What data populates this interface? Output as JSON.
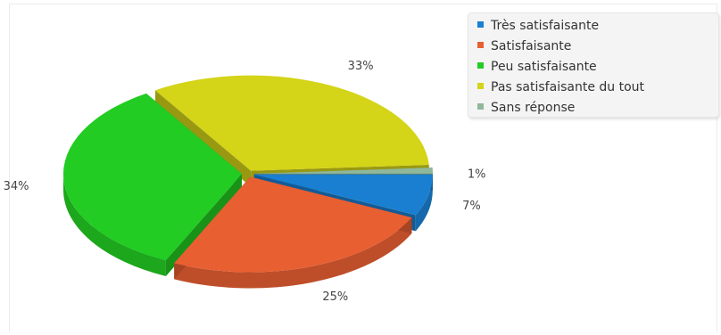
{
  "chart_data": {
    "type": "pie",
    "title": "",
    "categories": [
      "Très satisfaisante",
      "Satisfaisante",
      "Peu satisfaisante",
      "Pas satisfaisante du tout",
      "Sans réponse"
    ],
    "values": [
      7,
      25,
      34,
      33,
      1
    ],
    "labels": [
      "7%",
      "25%",
      "34%",
      "33%",
      "1%"
    ],
    "colors": [
      "#1a7fd0",
      "#e85f32",
      "#22cc22",
      "#d4d418",
      "#8fb89a"
    ],
    "legend_position": "top-right",
    "three_d": true,
    "exploded": true
  }
}
